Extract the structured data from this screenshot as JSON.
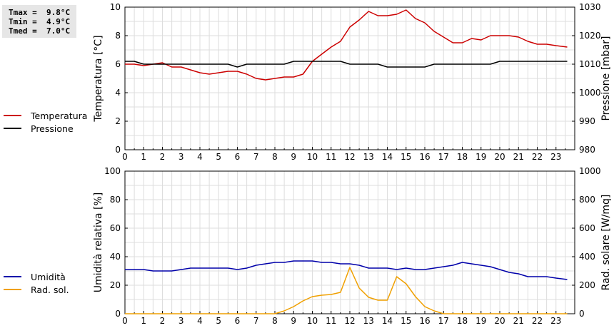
{
  "stats": {
    "tmax": "Tmax =  9.8°C",
    "tmin": "Tmin =  4.9°C",
    "tmed": "Tmed =  7.0°C"
  },
  "legend_top": [
    {
      "label": "Temperatura",
      "color": "#cc0000"
    },
    {
      "label": "Pressione",
      "color": "#000000"
    }
  ],
  "legend_bottom": [
    {
      "label": "Umidità",
      "color": "#0000aa"
    },
    {
      "label": "Rad. sol.",
      "color": "#f0a000"
    }
  ],
  "chart_data": [
    {
      "type": "line",
      "xlim": [
        0,
        24
      ],
      "x_ticks": [
        0,
        1,
        2,
        3,
        4,
        5,
        6,
        7,
        8,
        9,
        10,
        11,
        12,
        13,
        14,
        15,
        16,
        17,
        18,
        19,
        20,
        21,
        22,
        23
      ],
      "grid": true,
      "left_axis": {
        "label": "Temperatura [°C]",
        "ylim": [
          0,
          10
        ],
        "ticks": [
          0,
          2,
          4,
          6,
          8,
          10
        ]
      },
      "right_axis": {
        "label": "Pressione [mbar]",
        "ylim": [
          980,
          1030
        ],
        "ticks": [
          980,
          990,
          1000,
          1010,
          1020,
          1030
        ]
      },
      "series": [
        {
          "name": "Temperatura",
          "axis": "left",
          "color": "#cc0000",
          "points": [
            [
              0,
              6.0
            ],
            [
              0.5,
              6.0
            ],
            [
              1,
              5.9
            ],
            [
              1.5,
              6.0
            ],
            [
              2,
              6.1
            ],
            [
              2.5,
              5.8
            ],
            [
              3,
              5.8
            ],
            [
              3.5,
              5.6
            ],
            [
              4,
              5.4
            ],
            [
              4.5,
              5.3
            ],
            [
              5,
              5.4
            ],
            [
              5.5,
              5.5
            ],
            [
              6,
              5.5
            ],
            [
              6.5,
              5.3
            ],
            [
              7,
              5.0
            ],
            [
              7.5,
              4.9
            ],
            [
              8,
              5.0
            ],
            [
              8.5,
              5.1
            ],
            [
              9,
              5.1
            ],
            [
              9.5,
              5.3
            ],
            [
              10,
              6.2
            ],
            [
              10.5,
              6.7
            ],
            [
              11,
              7.2
            ],
            [
              11.5,
              7.6
            ],
            [
              12,
              8.6
            ],
            [
              12.5,
              9.1
            ],
            [
              13,
              9.7
            ],
            [
              13.5,
              9.4
            ],
            [
              14,
              9.4
            ],
            [
              14.5,
              9.5
            ],
            [
              15,
              9.8
            ],
            [
              15.5,
              9.2
            ],
            [
              16,
              8.9
            ],
            [
              16.5,
              8.3
            ],
            [
              17,
              7.9
            ],
            [
              17.5,
              7.5
            ],
            [
              18,
              7.5
            ],
            [
              18.5,
              7.8
            ],
            [
              19,
              7.7
            ],
            [
              19.5,
              8.0
            ],
            [
              20,
              8.0
            ],
            [
              20.5,
              8.0
            ],
            [
              21,
              7.9
            ],
            [
              21.5,
              7.6
            ],
            [
              22,
              7.4
            ],
            [
              22.5,
              7.4
            ],
            [
              23,
              7.3
            ],
            [
              23.6,
              7.2
            ]
          ]
        },
        {
          "name": "Pressione",
          "axis": "right",
          "color": "#000000",
          "points": [
            [
              0,
              1011
            ],
            [
              0.5,
              1011
            ],
            [
              1,
              1010
            ],
            [
              2,
              1010
            ],
            [
              3,
              1010
            ],
            [
              4,
              1010
            ],
            [
              5,
              1010
            ],
            [
              5.5,
              1010
            ],
            [
              6,
              1009
            ],
            [
              6.5,
              1010
            ],
            [
              7,
              1010
            ],
            [
              8,
              1010
            ],
            [
              8.5,
              1010
            ],
            [
              9,
              1011
            ],
            [
              10,
              1011
            ],
            [
              11,
              1011
            ],
            [
              11.5,
              1011
            ],
            [
              12,
              1010
            ],
            [
              13,
              1010
            ],
            [
              13.5,
              1010
            ],
            [
              14,
              1009
            ],
            [
              15,
              1009
            ],
            [
              16,
              1009
            ],
            [
              16.5,
              1010
            ],
            [
              17,
              1010
            ],
            [
              18,
              1010
            ],
            [
              19,
              1010
            ],
            [
              19.5,
              1010
            ],
            [
              20,
              1011
            ],
            [
              21,
              1011
            ],
            [
              22,
              1011
            ],
            [
              23,
              1011
            ],
            [
              23.6,
              1011
            ]
          ]
        }
      ]
    },
    {
      "type": "line",
      "xlim": [
        0,
        24
      ],
      "x_ticks": [
        0,
        1,
        2,
        3,
        4,
        5,
        6,
        7,
        8,
        9,
        10,
        11,
        12,
        13,
        14,
        15,
        16,
        17,
        18,
        19,
        20,
        21,
        22,
        23
      ],
      "grid": true,
      "left_axis": {
        "label": "Umidità relativa [%]",
        "ylim": [
          0,
          100
        ],
        "ticks": [
          0,
          20,
          40,
          60,
          80,
          100
        ]
      },
      "right_axis": {
        "label": "Rad. solare [W/mq]",
        "ylim": [
          0,
          1000
        ],
        "ticks": [
          0,
          200,
          400,
          600,
          800,
          1000
        ]
      },
      "series": [
        {
          "name": "Umidità",
          "axis": "left",
          "color": "#0000aa",
          "points": [
            [
              0,
              31
            ],
            [
              1,
              31
            ],
            [
              1.5,
              30
            ],
            [
              2,
              30
            ],
            [
              2.5,
              30
            ],
            [
              3,
              31
            ],
            [
              3.5,
              32
            ],
            [
              4,
              32
            ],
            [
              5,
              32
            ],
            [
              5.5,
              32
            ],
            [
              6,
              31
            ],
            [
              6.5,
              32
            ],
            [
              7,
              34
            ],
            [
              7.5,
              35
            ],
            [
              8,
              36
            ],
            [
              8.5,
              36
            ],
            [
              9,
              37
            ],
            [
              10,
              37
            ],
            [
              10.5,
              36
            ],
            [
              11,
              36
            ],
            [
              11.5,
              35
            ],
            [
              12,
              35
            ],
            [
              12.5,
              34
            ],
            [
              13,
              32
            ],
            [
              14,
              32
            ],
            [
              14.5,
              31
            ],
            [
              15,
              32
            ],
            [
              15.5,
              31
            ],
            [
              16,
              31
            ],
            [
              16.5,
              32
            ],
            [
              17,
              33
            ],
            [
              17.5,
              34
            ],
            [
              18,
              36
            ],
            [
              18.5,
              35
            ],
            [
              19,
              34
            ],
            [
              19.5,
              33
            ],
            [
              20,
              31
            ],
            [
              20.5,
              29
            ],
            [
              21,
              28
            ],
            [
              21.5,
              26
            ],
            [
              22,
              26
            ],
            [
              22.5,
              26
            ],
            [
              23,
              25
            ],
            [
              23.6,
              24
            ]
          ]
        },
        {
          "name": "Rad. sol.",
          "axis": "right",
          "color": "#f0a000",
          "points": [
            [
              0,
              0
            ],
            [
              8,
              0
            ],
            [
              8.5,
              20
            ],
            [
              9,
              50
            ],
            [
              9.5,
              90
            ],
            [
              10,
              120
            ],
            [
              10.5,
              130
            ],
            [
              11,
              135
            ],
            [
              11.5,
              150
            ],
            [
              12,
              325
            ],
            [
              12.5,
              180
            ],
            [
              13,
              115
            ],
            [
              13.5,
              95
            ],
            [
              14,
              95
            ],
            [
              14.5,
              260
            ],
            [
              15,
              210
            ],
            [
              15.5,
              120
            ],
            [
              16,
              50
            ],
            [
              16.5,
              20
            ],
            [
              17,
              0
            ],
            [
              23.6,
              0
            ]
          ]
        }
      ]
    }
  ]
}
